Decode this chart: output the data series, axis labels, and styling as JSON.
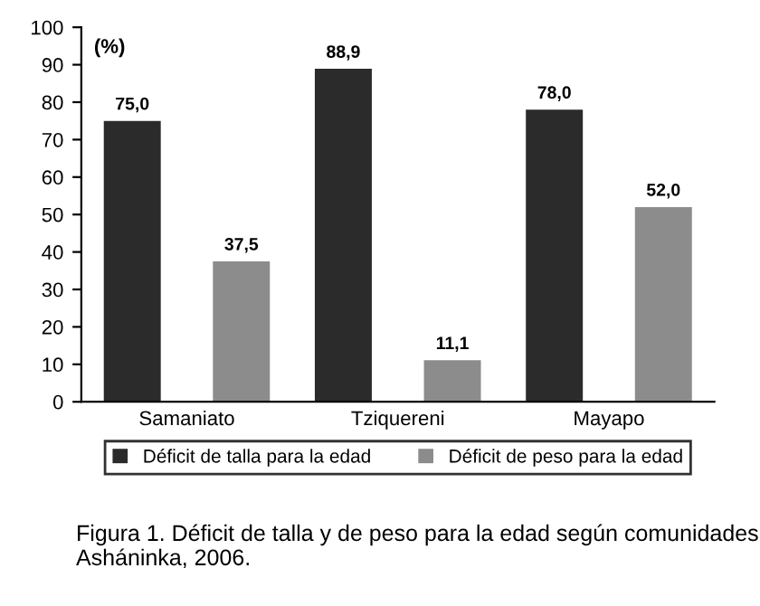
{
  "chart_data": {
    "type": "bar",
    "ylabel": "(%)",
    "categories": [
      "Samaniato",
      "Tziquereni",
      "Mayapo"
    ],
    "series": [
      {
        "name": "Déficit de talla para la edad",
        "color": "#2b2b2b",
        "values": [
          75.0,
          88.9,
          78.0
        ],
        "value_labels": [
          "75,0",
          "88,9",
          "78,0"
        ]
      },
      {
        "name": "Déficit de peso para la edad",
        "color": "#8c8c8c",
        "values": [
          37.5,
          11.1,
          52.0
        ],
        "value_labels": [
          "37,5",
          "11,1",
          "52,0"
        ]
      }
    ],
    "ylim": [
      0,
      100
    ],
    "yticks": [
      0,
      10,
      20,
      30,
      40,
      50,
      60,
      70,
      80,
      90,
      100
    ],
    "grid": false,
    "legend": "bottom",
    "annotations": [
      "Figura 1. Déficit de talla y de peso para la edad según comunidades Asháninka, 2006."
    ]
  }
}
